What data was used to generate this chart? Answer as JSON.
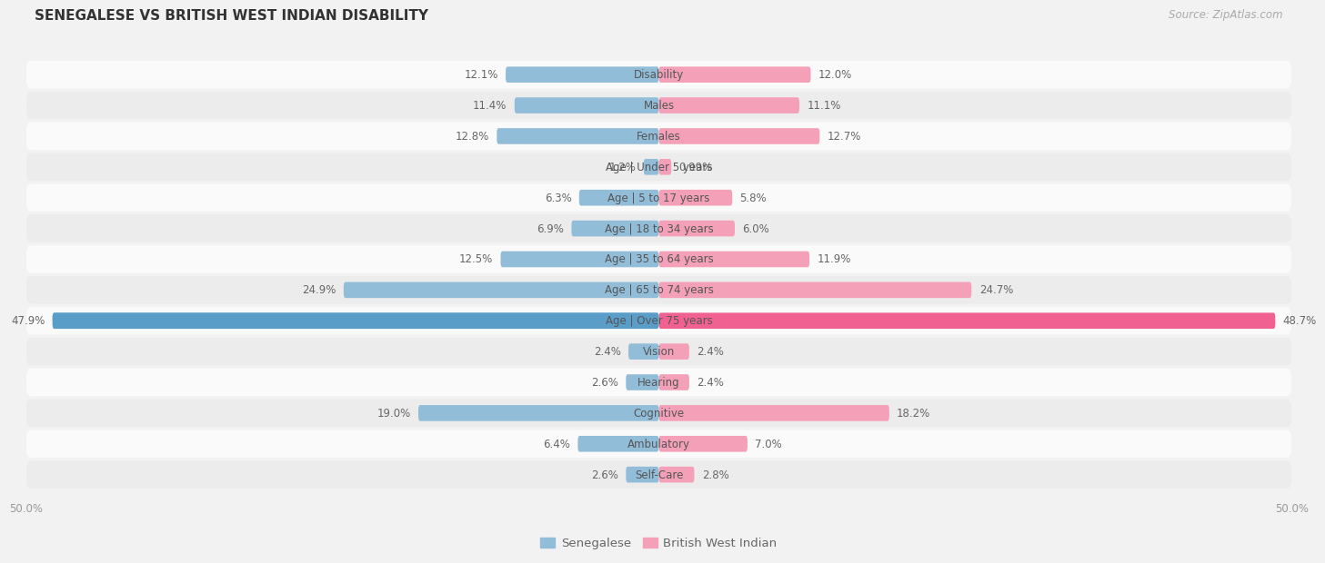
{
  "title": "SENEGALESE VS BRITISH WEST INDIAN DISABILITY",
  "source": "Source: ZipAtlas.com",
  "categories": [
    "Disability",
    "Males",
    "Females",
    "Age | Under 5 years",
    "Age | 5 to 17 years",
    "Age | 18 to 34 years",
    "Age | 35 to 64 years",
    "Age | 65 to 74 years",
    "Age | Over 75 years",
    "Vision",
    "Hearing",
    "Cognitive",
    "Ambulatory",
    "Self-Care"
  ],
  "senegalese": [
    12.1,
    11.4,
    12.8,
    1.2,
    6.3,
    6.9,
    12.5,
    24.9,
    47.9,
    2.4,
    2.6,
    19.0,
    6.4,
    2.6
  ],
  "british_west_indian": [
    12.0,
    11.1,
    12.7,
    0.99,
    5.8,
    6.0,
    11.9,
    24.7,
    48.7,
    2.4,
    2.4,
    18.2,
    7.0,
    2.8
  ],
  "senegalese_labels": [
    "12.1%",
    "11.4%",
    "12.8%",
    "1.2%",
    "6.3%",
    "6.9%",
    "12.5%",
    "24.9%",
    "47.9%",
    "2.4%",
    "2.6%",
    "19.0%",
    "6.4%",
    "2.6%"
  ],
  "british_labels": [
    "12.0%",
    "11.1%",
    "12.7%",
    "0.99%",
    "5.8%",
    "6.0%",
    "11.9%",
    "24.7%",
    "48.7%",
    "2.4%",
    "2.4%",
    "18.2%",
    "7.0%",
    "2.8%"
  ],
  "max_val": 50.0,
  "blue_color": "#92bdd9",
  "pink_color": "#f4a0b8",
  "pink_bright": "#f06090",
  "bg_color": "#f2f2f2",
  "row_light": "#fafafa",
  "row_dark": "#ececec",
  "title_fontsize": 11,
  "source_fontsize": 8.5,
  "label_fontsize": 8.5,
  "category_fontsize": 8.5,
  "axis_label_fontsize": 8.5,
  "legend_fontsize": 9.5
}
